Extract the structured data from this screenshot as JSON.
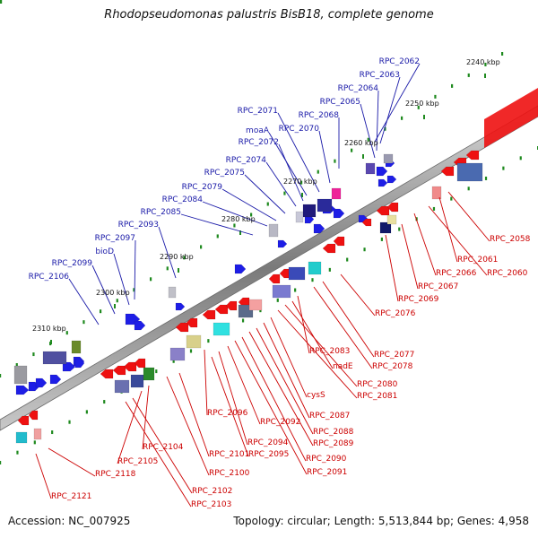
{
  "title": "Rhodopseudomonas palustris BisB18, complete genome",
  "footer": {
    "accession": "Accession: NC_007925",
    "topology": "Topology: circular; Length: 5,513,844 bp; Genes: 4,958"
  },
  "colors": {
    "forward_label": "#1a1aa8",
    "reverse_label": "#cc0000",
    "forward_arrow": "#1e1ee6",
    "reverse_arrow": "#ee1111",
    "backbone": "#8a8a8a",
    "tick": "#1f8a1f"
  },
  "ticks": [
    {
      "label": "2240 kbp"
    },
    {
      "label": "2250 kbp"
    },
    {
      "label": "2260 kbp"
    },
    {
      "label": "2270 kbp"
    },
    {
      "label": "2280 kbp"
    },
    {
      "label": "2290 kbp"
    },
    {
      "label": "2300 kbp"
    },
    {
      "label": "2310 kbp"
    }
  ],
  "forward_labels": [
    "RPC_2062",
    "RPC_2063",
    "RPC_2064",
    "RPC_2065",
    "RPC_2068",
    "RPC_2070",
    "RPC_2071",
    "moaA",
    "RPC_2072",
    "RPC_2074",
    "RPC_2075",
    "RPC_2079",
    "RPC_2084",
    "RPC_2085",
    "RPC_2093",
    "RPC_2097",
    "bioD",
    "RPC_2099",
    "RPC_2106"
  ],
  "reverse_labels": [
    "RPC_2058",
    "RPC_2061",
    "RPC_2060",
    "RPC_2066",
    "RPC_2067",
    "RPC_2069",
    "RPC_2076",
    "RPC_2077",
    "RPC_2078",
    "RPC_2083",
    "nadE",
    "RPC_2080",
    "RPC_2081",
    "cysS",
    "RPC_2087",
    "RPC_2088",
    "RPC_2089",
    "RPC_2090",
    "RPC_2091",
    "RPC_2092",
    "RPC_2096",
    "RPC_2094",
    "RPC_2095",
    "RPC_2101",
    "RPC_2100",
    "RPC_2104",
    "RPC_2105",
    "RPC_2102",
    "RPC_2103",
    "RPC_2118",
    "RPC_2121"
  ]
}
